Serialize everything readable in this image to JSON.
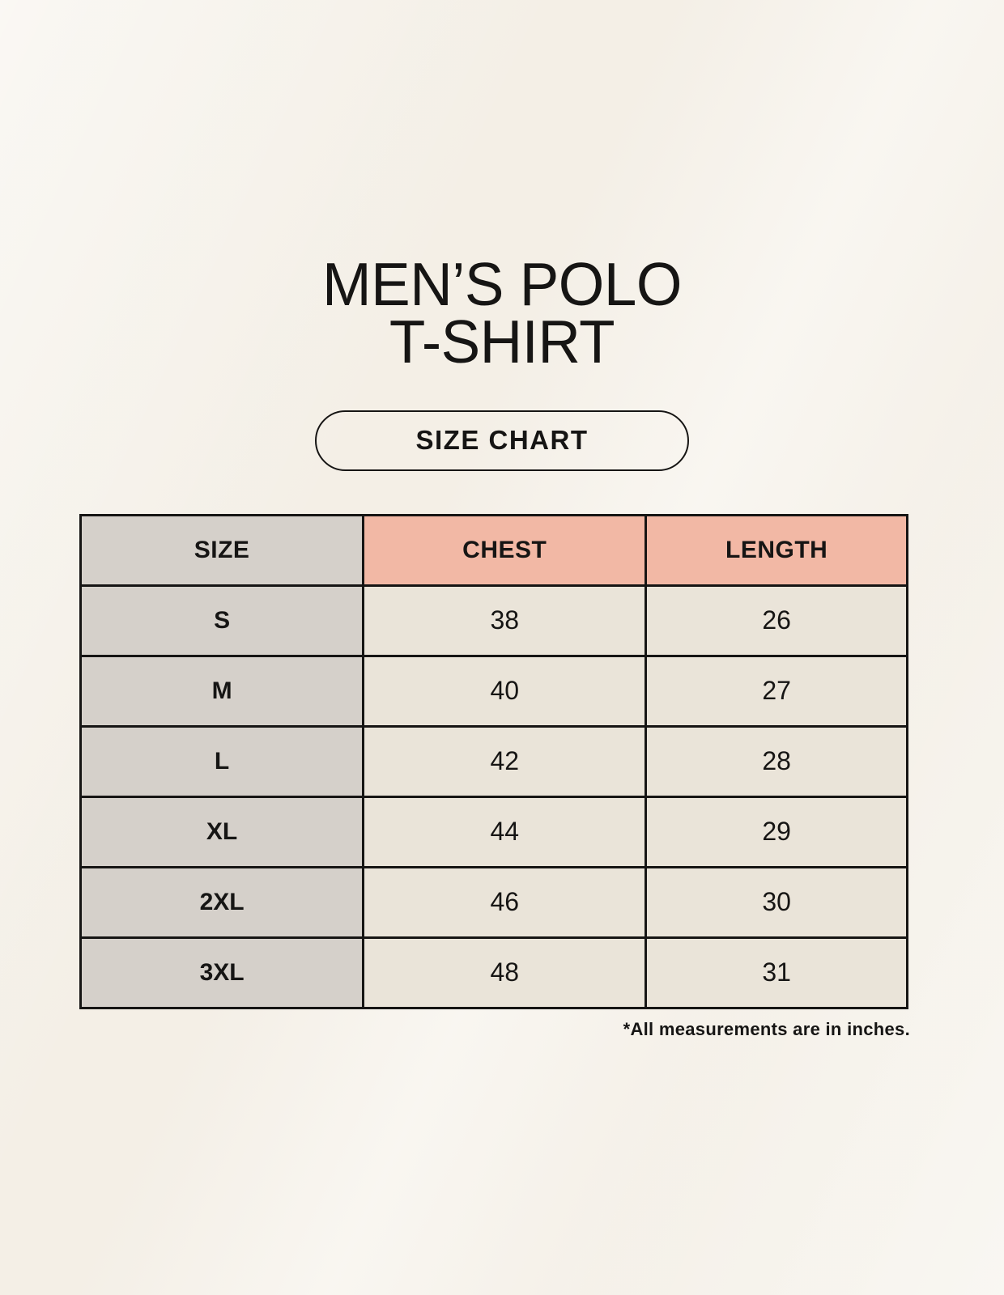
{
  "page": {
    "title_line1": "MEN’S POLO",
    "title_line2": "T-SHIRT",
    "size_chart_button_label": "SIZE CHART",
    "footnote": "*All measurements are in inches."
  },
  "colors": {
    "background": "#f7f3ec",
    "header_size_bg": "#d5d0ca",
    "header_measure_bg": "#f2b8a5",
    "row_label_bg": "#d5d0ca",
    "row_value_bg": "#eae4d9",
    "border": "#161514",
    "text": "#161514"
  },
  "chart_data": {
    "type": "table",
    "title": "MEN’S POLO T-SHIRT",
    "subtitle": "SIZE CHART",
    "columns": [
      "SIZE",
      "CHEST",
      "LENGTH"
    ],
    "rows": [
      [
        "S",
        "38",
        "26"
      ],
      [
        "M",
        "40",
        "27"
      ],
      [
        "L",
        "42",
        "28"
      ],
      [
        "XL",
        "44",
        "29"
      ],
      [
        "2XL",
        "46",
        "30"
      ],
      [
        "3XL",
        "48",
        "31"
      ]
    ],
    "units": "inches",
    "note": "*All measurements are in inches."
  }
}
